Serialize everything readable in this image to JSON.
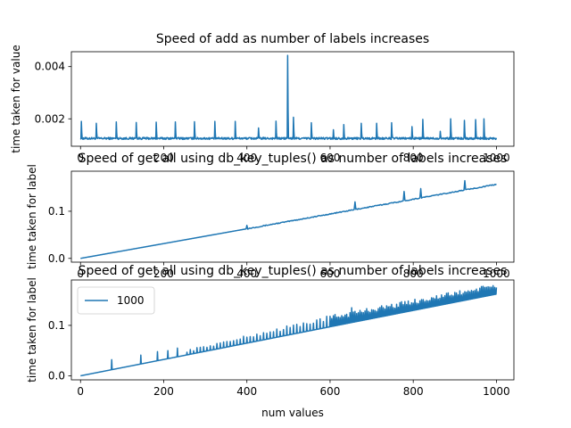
{
  "chart_data": [
    {
      "type": "line",
      "title": "Speed of add as number of labels increases",
      "xlabel": "",
      "ylabel": "time taken for value",
      "xlim": [
        -22,
        1042
      ],
      "ylim": [
        0.00095,
        0.00457
      ],
      "xticks": [
        0,
        200,
        400,
        600,
        800,
        1000
      ],
      "xtick_labels": [
        "0",
        "200",
        "400",
        "600",
        "800",
        "1000"
      ],
      "yticks": [
        0.002,
        0.004
      ],
      "ytick_labels": [
        "0.002",
        "0.004"
      ],
      "color": "#1f77b4",
      "baseline": 0.00125,
      "spikes": [
        {
          "x": 2,
          "y": 0.0019
        },
        {
          "x": 38,
          "y": 0.00183
        },
        {
          "x": 86,
          "y": 0.00188
        },
        {
          "x": 134,
          "y": 0.00186
        },
        {
          "x": 182,
          "y": 0.00187
        },
        {
          "x": 228,
          "y": 0.00188
        },
        {
          "x": 274,
          "y": 0.00189
        },
        {
          "x": 323,
          "y": 0.0019
        },
        {
          "x": 372,
          "y": 0.0019
        },
        {
          "x": 428,
          "y": 0.00165
        },
        {
          "x": 470,
          "y": 0.00191
        },
        {
          "x": 498,
          "y": 0.00443
        },
        {
          "x": 512,
          "y": 0.00206
        },
        {
          "x": 555,
          "y": 0.00185
        },
        {
          "x": 608,
          "y": 0.00158
        },
        {
          "x": 633,
          "y": 0.00178
        },
        {
          "x": 675,
          "y": 0.00183
        },
        {
          "x": 712,
          "y": 0.00183
        },
        {
          "x": 748,
          "y": 0.00185
        },
        {
          "x": 797,
          "y": 0.0017
        },
        {
          "x": 823,
          "y": 0.00198
        },
        {
          "x": 865,
          "y": 0.00152
        },
        {
          "x": 890,
          "y": 0.002
        },
        {
          "x": 923,
          "y": 0.00194
        },
        {
          "x": 950,
          "y": 0.00197
        },
        {
          "x": 970,
          "y": 0.002
        }
      ]
    },
    {
      "type": "line",
      "title": "Speed of get all using db_key_tuples() as number of labels increases",
      "xlabel": "",
      "ylabel": "time taken for label",
      "xlim": [
        -22,
        1042
      ],
      "ylim": [
        -0.008,
        0.185
      ],
      "xticks": [
        0,
        200,
        400,
        600,
        800,
        1000
      ],
      "xtick_labels": [
        "0",
        "200",
        "400",
        "600",
        "800",
        "1000"
      ],
      "yticks": [
        0.0,
        0.1
      ],
      "ytick_labels": [
        "0.0",
        "0.1"
      ],
      "color": "#1f77b4",
      "x": [
        0,
        1000
      ],
      "y": [
        0.0,
        0.157
      ],
      "spikes": [
        {
          "x": 400,
          "y": 0.07
        },
        {
          "x": 575,
          "y": 0.097
        },
        {
          "x": 660,
          "y": 0.12
        },
        {
          "x": 675,
          "y": 0.125
        },
        {
          "x": 778,
          "y": 0.142
        },
        {
          "x": 818,
          "y": 0.148
        },
        {
          "x": 924,
          "y": 0.165
        },
        {
          "x": 965,
          "y": 0.173
        },
        {
          "x": 975,
          "y": 0.171
        }
      ]
    },
    {
      "type": "line",
      "title": "Speed of get all using db_key_tuples() as number of labels increases",
      "xlabel": "num values",
      "ylabel": "time taken for label",
      "xlim": [
        -22,
        1042
      ],
      "ylim": [
        -0.008,
        0.19
      ],
      "xticks": [
        0,
        200,
        400,
        600,
        800,
        1000
      ],
      "xtick_labels": [
        "0",
        "200",
        "400",
        "600",
        "800",
        "1000"
      ],
      "yticks": [
        0.0,
        0.1
      ],
      "ytick_labels": [
        "0.0",
        "0.1"
      ],
      "color": "#1f77b4",
      "legend": {
        "labels": [
          "1000"
        ],
        "loc": "upper left"
      },
      "x": [
        0,
        1000
      ],
      "y": [
        0.0,
        0.162
      ],
      "upper_envelope": [
        0,
        0.0,
        400,
        0.08,
        600,
        0.12,
        1000,
        0.183
      ],
      "spikes": [
        {
          "x": 75,
          "y": 0.032
        },
        {
          "x": 145,
          "y": 0.041
        },
        {
          "x": 185,
          "y": 0.048
        },
        {
          "x": 210,
          "y": 0.05
        },
        {
          "x": 233,
          "y": 0.055
        },
        {
          "x": 652,
          "y": 0.135
        }
      ]
    }
  ]
}
